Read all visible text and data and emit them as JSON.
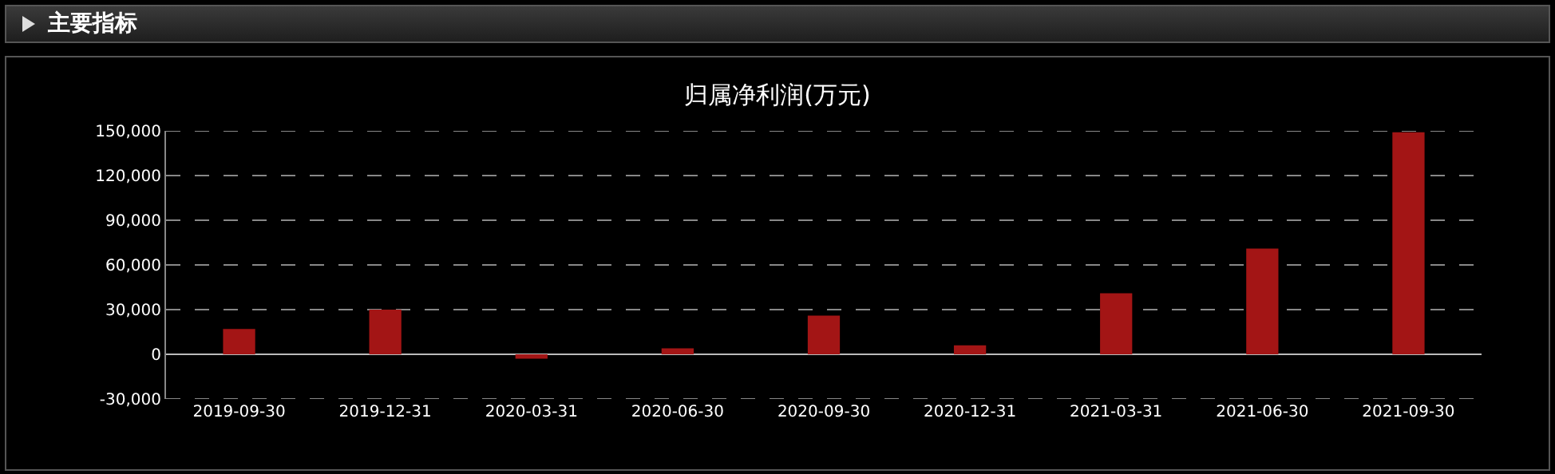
{
  "chart_data": {
    "type": "bar",
    "title": "归属净利润(万元)",
    "subtitle": "主要指标",
    "categories": [
      "2019-09-30",
      "2019-12-31",
      "2020-03-31",
      "2020-06-30",
      "2020-09-30",
      "2020-12-31",
      "2021-03-31",
      "2021-06-30",
      "2021-09-30"
    ],
    "series": [
      {
        "color": "#a31515",
        "values": [
          17000,
          30000,
          -3000,
          4000,
          26000,
          6000,
          41000,
          71000,
          149000
        ]
      }
    ],
    "ylim": [
      -30000,
      150000
    ],
    "yticks": [
      {
        "value": -30000,
        "label": "-30,000"
      },
      0,
      {
        "value": 30000,
        "label": "30,000"
      },
      {
        "value": 60000,
        "label": "60,000"
      },
      {
        "value": 90000,
        "label": "90,000"
      },
      {
        "value": 120000,
        "label": "120,000"
      },
      {
        "value": 150000,
        "label": "150,000"
      }
    ],
    "grid": "y"
  }
}
